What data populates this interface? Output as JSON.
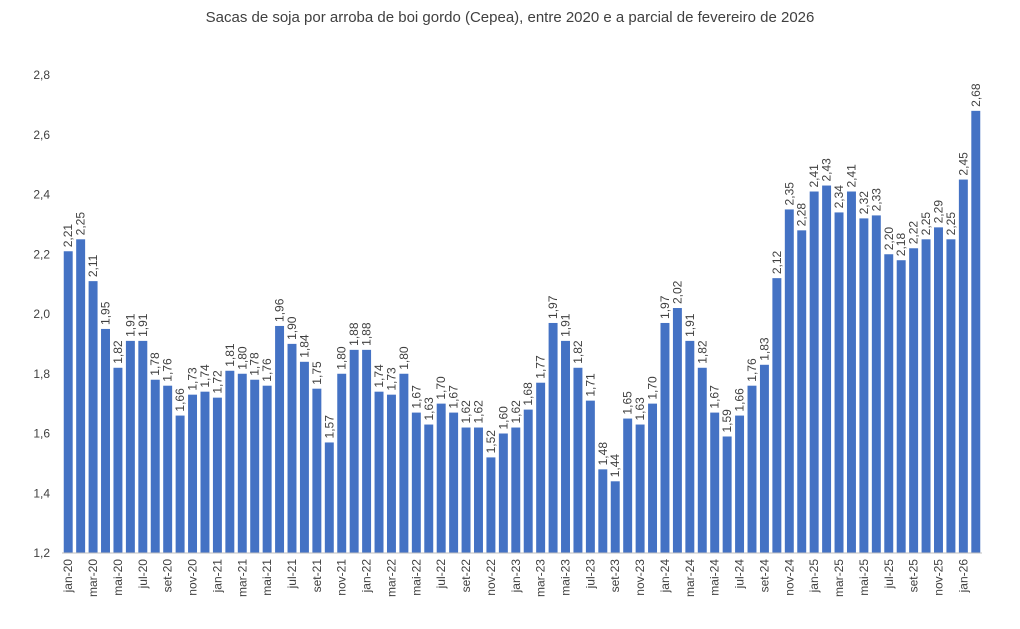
{
  "chart_data": {
    "type": "bar",
    "title": "Sacas de soja por arroba de boi gordo (Cepea), entre 2020 e a parcial de fevereiro de 2026",
    "categories": [
      "jan-20",
      null,
      "mar-20",
      null,
      "mai-20",
      null,
      "jul-20",
      null,
      "set-20",
      null,
      "nov-20",
      null,
      "jan-21",
      null,
      "mar-21",
      null,
      "mai-21",
      null,
      "jul-21",
      null,
      "set-21",
      null,
      "nov-21",
      null,
      "jan-22",
      null,
      "mar-22",
      null,
      "mai-22",
      null,
      "jul-22",
      null,
      "set-22",
      null,
      "nov-22",
      null,
      "jan-23",
      null,
      "mar-23",
      null,
      "mai-23",
      null,
      "jul-23",
      null,
      "set-23",
      null,
      "nov-23",
      null,
      "jan-24",
      null,
      "mar-24",
      null,
      "mai-24",
      null,
      "jul-24",
      null,
      "set-24",
      null,
      "nov-24",
      null,
      "jan-25",
      null,
      "mar-25",
      null,
      "mai-25",
      null,
      "jul-25",
      null,
      "set-25",
      null,
      "nov-25",
      null,
      "jan-26",
      null
    ],
    "values": [
      2.21,
      2.25,
      2.11,
      1.95,
      1.82,
      1.91,
      1.91,
      1.78,
      1.76,
      1.66,
      1.73,
      1.74,
      1.72,
      1.81,
      1.8,
      1.78,
      1.76,
      1.96,
      1.9,
      1.84,
      1.75,
      1.57,
      1.8,
      1.88,
      1.88,
      1.74,
      1.73,
      1.8,
      1.67,
      1.63,
      1.7,
      1.67,
      1.62,
      1.62,
      1.52,
      1.6,
      1.62,
      1.68,
      1.77,
      1.97,
      1.91,
      1.82,
      1.71,
      1.48,
      1.44,
      1.65,
      1.63,
      1.7,
      1.97,
      2.02,
      1.91,
      1.82,
      1.67,
      1.59,
      1.66,
      1.76,
      1.83,
      2.12,
      2.35,
      2.28,
      2.41,
      2.43,
      2.34,
      2.41,
      2.32,
      2.33,
      2.2,
      2.18,
      2.22,
      2.25,
      2.29,
      2.25,
      2.45,
      2.68
    ],
    "value_labels": [
      "2,21",
      "2,25",
      "2,11",
      "1,95",
      "1,82",
      "1,91",
      "1,91",
      "1,78",
      "1,76",
      "1,66",
      "1,73",
      "1,74",
      "1,72",
      "1,81",
      "1,80",
      "1,78",
      "1,76",
      "1,96",
      "1,90",
      "1,84",
      "1,75",
      "1,57",
      "1,80",
      "1,88",
      "1,88",
      "1,74",
      "1,73",
      "1,80",
      "1,67",
      "1,63",
      "1,70",
      "1,67",
      "1,62",
      "1,62",
      "1,52",
      "1,60",
      "1,62",
      "1,68",
      "1,77",
      "1,97",
      "1,91",
      "1,82",
      "1,71",
      "1,48",
      "1,44",
      "1,65",
      "1,63",
      "1,70",
      "1,97",
      "2,02",
      "1,91",
      "1,82",
      "1,67",
      "1,59",
      "1,66",
      "1,76",
      "1,83",
      "2,12",
      "2,35",
      "2,28",
      "2,41",
      "2,43",
      "2,34",
      "2,41",
      "2,32",
      "2,33",
      "2,20",
      "2,18",
      "2,22",
      "2,25",
      "2,29",
      "2,25",
      "2,45",
      "2,68"
    ],
    "color": "#4472c4",
    "ylim": [
      1.2,
      2.8
    ],
    "yticks": [
      {
        "value": 1.2,
        "label": "1,2"
      },
      {
        "value": 1.4,
        "label": "1,4"
      },
      {
        "value": 1.6,
        "label": "1,6"
      },
      {
        "value": 1.8,
        "label": "1,8"
      },
      {
        "value": 2.0,
        "label": "2,0"
      },
      {
        "value": 2.2,
        "label": "2,2"
      },
      {
        "value": 2.4,
        "label": "2,4"
      },
      {
        "value": 2.6,
        "label": "2,6"
      },
      {
        "value": 2.8,
        "label": "2,8"
      }
    ],
    "grid": false
  }
}
